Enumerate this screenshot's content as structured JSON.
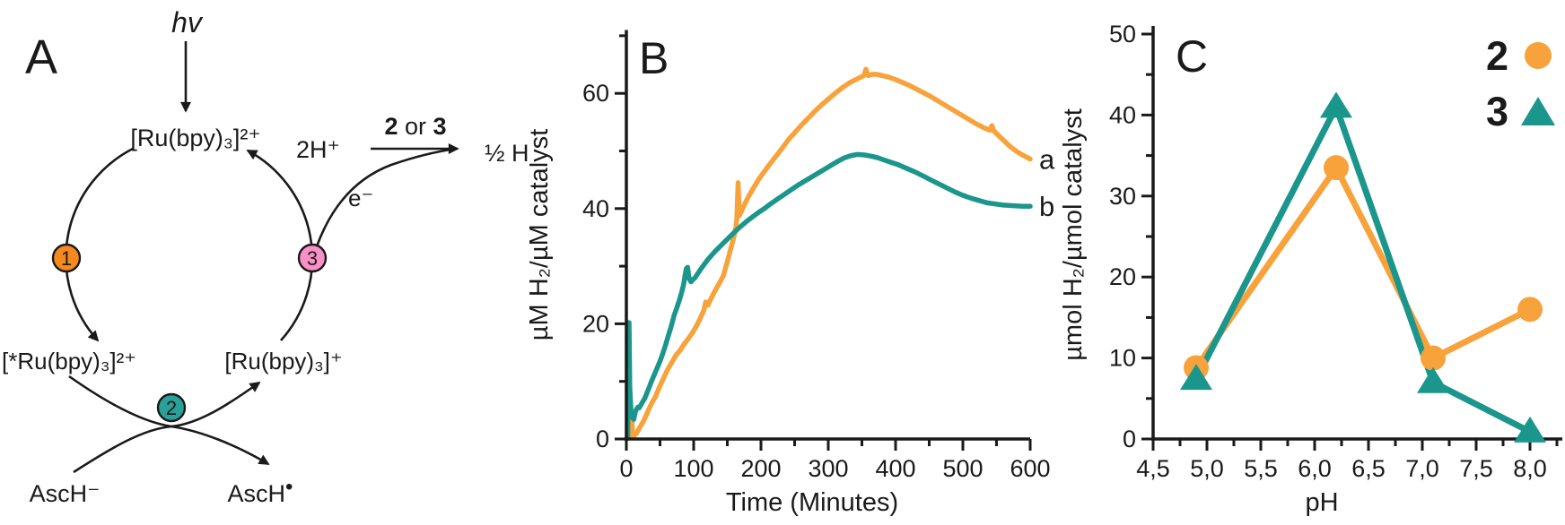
{
  "panel_a": {
    "label": "A",
    "photon": "hv",
    "species_top": "[Ru(bpy)₃]²⁺",
    "species_excited": "[*Ru(bpy)₃]²⁺",
    "species_reduced": "[Ru(bpy)₃]⁺",
    "electron_donor": "AscH⁻",
    "donor_radical_base": "AscH",
    "donor_radical_dot": "•",
    "protons": "2H⁺",
    "catalyst_step_bold_left": "2",
    "catalyst_step_middle": " or ",
    "catalyst_step_bold_right": "3",
    "product": "½ H",
    "electron": "e⁻",
    "badge_1": "1",
    "badge_2": "2",
    "badge_3": "3",
    "colors": {
      "badge1": "#F6891E",
      "badge2": "#2AA198",
      "badge3": "#F990C6",
      "ink": "#1a1a1a"
    }
  },
  "chart_data": [
    {
      "type": "line",
      "panel_label": "B",
      "xlabel": "Time (Minutes)",
      "ylabel": "µM H₂/µM catalyst",
      "xlim": [
        0,
        600
      ],
      "ylim": [
        0,
        71
      ],
      "grid": false,
      "xticks": [
        {
          "v": 0,
          "label": "0"
        },
        {
          "v": 100,
          "label": "100"
        },
        {
          "v": 200,
          "label": "200"
        },
        {
          "v": 300,
          "label": "300"
        },
        {
          "v": 400,
          "label": "400"
        },
        {
          "v": 500,
          "label": "500"
        },
        {
          "v": 600,
          "label": "600"
        }
      ],
      "xminor": [
        50,
        150,
        250,
        350,
        450,
        550
      ],
      "yticks": [
        {
          "v": 0,
          "label": "0"
        },
        {
          "v": 20,
          "label": "20"
        },
        {
          "v": 40,
          "label": "40"
        },
        {
          "v": 60,
          "label": "60"
        }
      ],
      "yminor": [
        10,
        30,
        50,
        70
      ],
      "series": [
        {
          "name": "a",
          "color": "#F8A23B",
          "points": [
            [
              0,
              0
            ],
            [
              5,
              0.2
            ],
            [
              7,
              0.3
            ],
            [
              8,
              4
            ],
            [
              9,
              1.2
            ],
            [
              11,
              0.5
            ],
            [
              15,
              1
            ],
            [
              20,
              2
            ],
            [
              26,
              3.2
            ],
            [
              32,
              4.8
            ],
            [
              38,
              6.3
            ],
            [
              43,
              7.3
            ],
            [
              49,
              9
            ],
            [
              55,
              10.5
            ],
            [
              61,
              12
            ],
            [
              67,
              13.2
            ],
            [
              74,
              14.6
            ],
            [
              80,
              15.4
            ],
            [
              86,
              16.5
            ],
            [
              92,
              17.4
            ],
            [
              98,
              18.4
            ],
            [
              104,
              19.6
            ],
            [
              110,
              21
            ],
            [
              115,
              22.3
            ],
            [
              118,
              23.8
            ],
            [
              121,
              23.2
            ],
            [
              126,
              24.4
            ],
            [
              132,
              25.8
            ],
            [
              138,
              27
            ],
            [
              144,
              28.3
            ],
            [
              150,
              30.8
            ],
            [
              155,
              33
            ],
            [
              160,
              35.2
            ],
            [
              163,
              37
            ],
            [
              164,
              38
            ],
            [
              166,
              44.5
            ],
            [
              168,
              38.8
            ],
            [
              172,
              39.8
            ],
            [
              176,
              40.8
            ],
            [
              181,
              42
            ],
            [
              186,
              43
            ],
            [
              191,
              44
            ],
            [
              196,
              45
            ],
            [
              201,
              45.8
            ],
            [
              211,
              47.4
            ],
            [
              221,
              48.9
            ],
            [
              231,
              50.4
            ],
            [
              241,
              52
            ],
            [
              251,
              53.3
            ],
            [
              261,
              54.6
            ],
            [
              271,
              55.8
            ],
            [
              281,
              57
            ],
            [
              291,
              58.1
            ],
            [
              301,
              59.1
            ],
            [
              311,
              60.1
            ],
            [
              321,
              61
            ],
            [
              331,
              61.8
            ],
            [
              341,
              62.4
            ],
            [
              348,
              62.8
            ],
            [
              353,
              63.1
            ],
            [
              356,
              64.2
            ],
            [
              359,
              63.1
            ],
            [
              365,
              63.3
            ],
            [
              372,
              63.3
            ],
            [
              380,
              63.1
            ],
            [
              390,
              62.8
            ],
            [
              400,
              62.4
            ],
            [
              410,
              61.9
            ],
            [
              420,
              61.4
            ],
            [
              430,
              60.8
            ],
            [
              440,
              60.2
            ],
            [
              450,
              59.6
            ],
            [
              460,
              58.9
            ],
            [
              470,
              58.2
            ],
            [
              480,
              57.5
            ],
            [
              490,
              56.8
            ],
            [
              500,
              56.1
            ],
            [
              510,
              55.4
            ],
            [
              520,
              54.7
            ],
            [
              530,
              54.1
            ],
            [
              540,
              53.6
            ],
            [
              543,
              54.4
            ],
            [
              546,
              53.5
            ],
            [
              552,
              52.8
            ],
            [
              560,
              51.9
            ],
            [
              570,
              50.8
            ],
            [
              580,
              49.9
            ],
            [
              590,
              49.2
            ],
            [
              600,
              48.6
            ]
          ]
        },
        {
          "name": "b",
          "color": "#1B968C",
          "points": [
            [
              0,
              0
            ],
            [
              2,
              0.4
            ],
            [
              3,
              20.2
            ],
            [
              4,
              20.2
            ],
            [
              5,
              9
            ],
            [
              7,
              4.5
            ],
            [
              9,
              3.7
            ],
            [
              11,
              3.4
            ],
            [
              13,
              4.6
            ],
            [
              15,
              5.2
            ],
            [
              17,
              5.5
            ],
            [
              19,
              5.4
            ],
            [
              21,
              5.8
            ],
            [
              24,
              6.4
            ],
            [
              27,
              7
            ],
            [
              30,
              7.8
            ],
            [
              34,
              9
            ],
            [
              38,
              10.2
            ],
            [
              42,
              11.3
            ],
            [
              46,
              12.4
            ],
            [
              50,
              13.5
            ],
            [
              54,
              14.8
            ],
            [
              58,
              16.2
            ],
            [
              62,
              17.8
            ],
            [
              66,
              19.3
            ],
            [
              71,
              21.5
            ],
            [
              75,
              22.8
            ],
            [
              79,
              24.2
            ],
            [
              82,
              25.4
            ],
            [
              85,
              26.8
            ],
            [
              87,
              28.3
            ],
            [
              89,
              29.6
            ],
            [
              91,
              29.8
            ],
            [
              93,
              27.9
            ],
            [
              96,
              27.3
            ],
            [
              99,
              27.7
            ],
            [
              102,
              28
            ],
            [
              106,
              28.7
            ],
            [
              110,
              29.4
            ],
            [
              115,
              30.2
            ],
            [
              120,
              31
            ],
            [
              126,
              31.8
            ],
            [
              132,
              32.6
            ],
            [
              138,
              33.3
            ],
            [
              144,
              34
            ],
            [
              151,
              34.8
            ],
            [
              158,
              35.6
            ],
            [
              165,
              36.4
            ],
            [
              172,
              37.1
            ],
            [
              180,
              37.9
            ],
            [
              188,
              38.6
            ],
            [
              196,
              39.3
            ],
            [
              205,
              40
            ],
            [
              214,
              40.8
            ],
            [
              224,
              41.6
            ],
            [
              234,
              42.4
            ],
            [
              244,
              43.2
            ],
            [
              254,
              44
            ],
            [
              264,
              44.7
            ],
            [
              274,
              45.4
            ],
            [
              284,
              46.1
            ],
            [
              294,
              46.8
            ],
            [
              304,
              47.5
            ],
            [
              314,
              48.2
            ],
            [
              324,
              48.8
            ],
            [
              334,
              49.2
            ],
            [
              344,
              49.4
            ],
            [
              354,
              49.3
            ],
            [
              364,
              49.1
            ],
            [
              374,
              48.8
            ],
            [
              384,
              48.4
            ],
            [
              394,
              48
            ],
            [
              404,
              47.6
            ],
            [
              416,
              47
            ],
            [
              428,
              46.4
            ],
            [
              440,
              45.7
            ],
            [
              452,
              45
            ],
            [
              464,
              44.3
            ],
            [
              476,
              43.6
            ],
            [
              488,
              42.9
            ],
            [
              500,
              42.3
            ],
            [
              512,
              41.8
            ],
            [
              524,
              41.4
            ],
            [
              536,
              41
            ],
            [
              548,
              40.8
            ],
            [
              560,
              40.6
            ],
            [
              575,
              40.5
            ],
            [
              590,
              40.4
            ],
            [
              600,
              40.4
            ]
          ]
        }
      ]
    },
    {
      "type": "line+scatter",
      "panel_label": "C",
      "xlabel": "pH",
      "ylabel": "µmol H₂/µmol catalyst",
      "xlim": [
        4.5,
        8.3
      ],
      "ylim": [
        0,
        51
      ],
      "grid": false,
      "xticks": [
        {
          "v": 4.5,
          "label": "4,5"
        },
        {
          "v": 5.0,
          "label": "5,0"
        },
        {
          "v": 5.5,
          "label": "5,5"
        },
        {
          "v": 6.0,
          "label": "6,0"
        },
        {
          "v": 6.5,
          "label": "6,5"
        },
        {
          "v": 7.0,
          "label": "7,0"
        },
        {
          "v": 7.5,
          "label": "7,5"
        },
        {
          "v": 8.0,
          "label": "8,0"
        }
      ],
      "xminor": [
        4.75,
        5.25,
        5.75,
        6.25,
        6.75,
        7.25,
        7.75,
        8.25
      ],
      "yticks": [
        {
          "v": 0,
          "label": "0"
        },
        {
          "v": 10,
          "label": "10"
        },
        {
          "v": 20,
          "label": "20"
        },
        {
          "v": 30,
          "label": "30"
        },
        {
          "v": 40,
          "label": "40"
        },
        {
          "v": 50,
          "label": "50"
        }
      ],
      "yminor": [
        5,
        15,
        25,
        35,
        45
      ],
      "series": [
        {
          "name": "2",
          "marker": "circle",
          "color": "#F8A23B",
          "points": [
            [
              4.9,
              8.8
            ],
            [
              6.2,
              33.5
            ],
            [
              7.1,
              10
            ],
            [
              8.0,
              16
            ]
          ]
        },
        {
          "name": "3",
          "marker": "triangle",
          "color": "#1B968C",
          "points": [
            [
              4.9,
              7.4
            ],
            [
              6.2,
              41
            ],
            [
              7.1,
              7
            ],
            [
              8.0,
              0.9
            ]
          ]
        }
      ],
      "legend": [
        {
          "label": "2",
          "marker": "circle",
          "color": "#F8A23B"
        },
        {
          "label": "3",
          "marker": "triangle",
          "color": "#1B968C"
        }
      ],
      "legend_position": "top-right"
    }
  ]
}
